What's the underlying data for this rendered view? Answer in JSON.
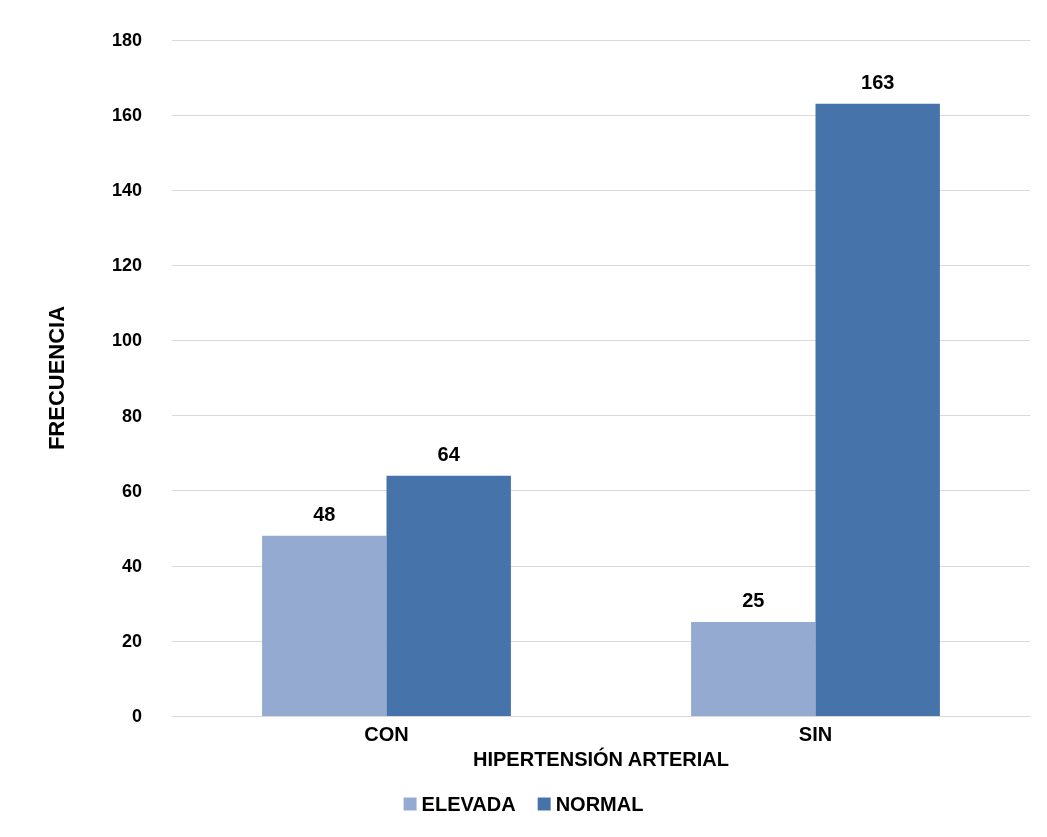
{
  "chart_data": {
    "type": "bar",
    "xlabel": "HIPERTENSIÓN ARTERIAL",
    "ylabel": "FRECUENCIA",
    "categories": [
      "CON",
      "SIN"
    ],
    "series": [
      {
        "name": "ELEVADA",
        "color": "#95aad0",
        "values": [
          48,
          25
        ]
      },
      {
        "name": "NORMAL",
        "color": "#4674aa",
        "values": [
          64,
          163
        ]
      }
    ],
    "ylim": [
      0,
      180
    ],
    "yticks": [
      0,
      20,
      40,
      60,
      80,
      100,
      120,
      140,
      160,
      180
    ],
    "grid": "y",
    "legend": "bottom",
    "data_labels": true
  }
}
